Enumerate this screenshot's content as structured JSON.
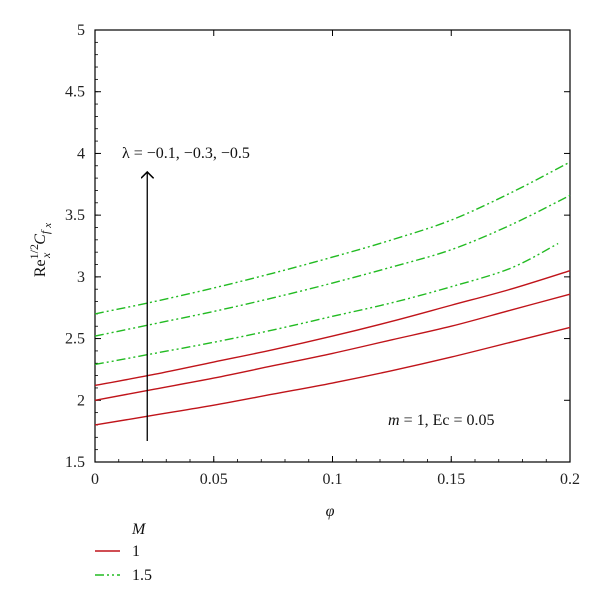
{
  "chart_data": {
    "type": "line",
    "xlabel": "φ",
    "ylabel": {
      "base": "Re",
      "sup": "1/2",
      "sub": "x",
      "c": "C",
      "csub": "f",
      "csubsub": "x"
    },
    "xlim": [
      0,
      0.2
    ],
    "ylim": [
      1.5,
      5
    ],
    "x_ticks": [
      0,
      0.05,
      0.1,
      0.15,
      0.2
    ],
    "x_tick_labels": [
      "0",
      "0.05",
      "0.1",
      "0.15",
      "0.2"
    ],
    "y_ticks": [
      1.5,
      2,
      2.5,
      3,
      3.5,
      4,
      4.5,
      5
    ],
    "y_tick_labels": [
      "1.5",
      "2",
      "2.5",
      "3",
      "3.5",
      "4",
      "4.5",
      "5"
    ],
    "grid": false,
    "legend_position": "bottom-left",
    "legend": {
      "title": "M",
      "entries": [
        {
          "label": "1",
          "color": "#c0141a",
          "style": "solid"
        },
        {
          "label": "1.5",
          "color": "#22bb22",
          "style": "dash-dot-dot"
        }
      ]
    },
    "annotations": {
      "lambda_label": "λ = −0.1, −0.3, −0.5",
      "lambda_arrow_x": 0.022,
      "lambda_arrow_y_start": 1.67,
      "lambda_arrow_y_end": 3.85,
      "params_label_parts": [
        "m",
        " = 1, Ec = 0.05"
      ]
    },
    "series": [
      {
        "M": "1",
        "lambda": "-0.1",
        "color": "#c0141a",
        "style": "solid",
        "x": [
          0,
          0.025,
          0.05,
          0.075,
          0.1,
          0.125,
          0.15,
          0.175,
          0.2
        ],
        "y": [
          1.8,
          1.88,
          1.96,
          2.05,
          2.14,
          2.24,
          2.35,
          2.47,
          2.59
        ]
      },
      {
        "M": "1",
        "lambda": "-0.3",
        "color": "#c0141a",
        "style": "solid",
        "x": [
          0,
          0.025,
          0.05,
          0.075,
          0.1,
          0.125,
          0.15,
          0.175,
          0.2
        ],
        "y": [
          2.0,
          2.09,
          2.18,
          2.28,
          2.38,
          2.49,
          2.6,
          2.73,
          2.86
        ]
      },
      {
        "M": "1",
        "lambda": "-0.5",
        "color": "#c0141a",
        "style": "solid",
        "x": [
          0,
          0.025,
          0.05,
          0.075,
          0.1,
          0.125,
          0.15,
          0.175,
          0.2
        ],
        "y": [
          2.12,
          2.21,
          2.31,
          2.41,
          2.52,
          2.64,
          2.77,
          2.9,
          3.05
        ]
      },
      {
        "M": "1.5",
        "lambda": "-0.1",
        "color": "#22bb22",
        "style": "dash-dot-dot",
        "x": [
          0,
          0.025,
          0.05,
          0.075,
          0.1,
          0.125,
          0.15,
          0.175,
          0.195
        ],
        "y": [
          2.29,
          2.38,
          2.47,
          2.57,
          2.68,
          2.79,
          2.92,
          3.07,
          3.27
        ]
      },
      {
        "M": "1.5",
        "lambda": "-0.3",
        "color": "#22bb22",
        "style": "dash-dot-dot",
        "x": [
          0,
          0.025,
          0.05,
          0.075,
          0.1,
          0.125,
          0.15,
          0.175,
          0.2
        ],
        "y": [
          2.52,
          2.62,
          2.72,
          2.83,
          2.95,
          3.08,
          3.22,
          3.42,
          3.66
        ]
      },
      {
        "M": "1.5",
        "lambda": "-0.5",
        "color": "#22bb22",
        "style": "dash-dot-dot",
        "x": [
          0,
          0.025,
          0.05,
          0.075,
          0.1,
          0.125,
          0.15,
          0.175,
          0.2
        ],
        "y": [
          2.7,
          2.8,
          2.91,
          3.03,
          3.16,
          3.3,
          3.46,
          3.68,
          3.93
        ]
      }
    ]
  }
}
